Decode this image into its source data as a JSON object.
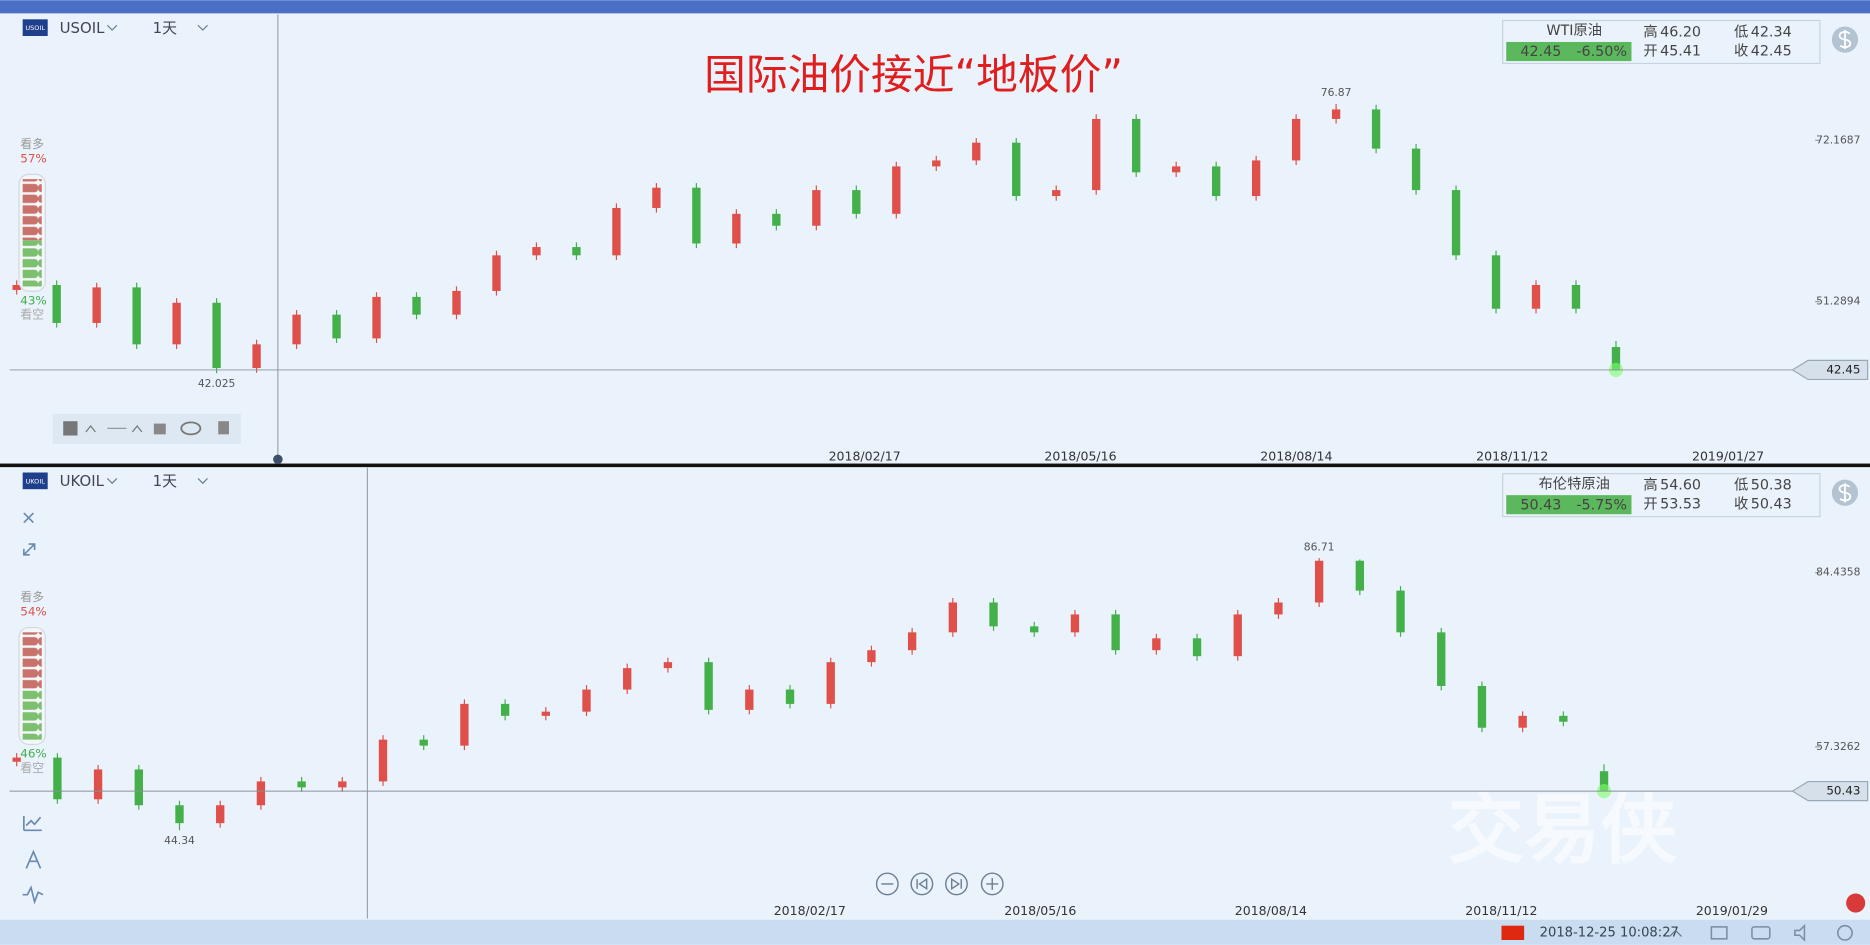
{
  "chart_data": [
    {
      "type": "candlestick",
      "symbol": "USOIL",
      "interval": "1天",
      "annotation": "国际油价接近“地板价”",
      "quote": {
        "name": "WTI原油",
        "last": "42.45",
        "change": "-6.50%",
        "fields": [
          {
            "label": "高",
            "value": "46.20"
          },
          {
            "label": "低",
            "value": "42.34"
          },
          {
            "label": "开",
            "value": "45.41"
          },
          {
            "label": "收",
            "value": "42.45"
          }
        ]
      },
      "sentiment": {
        "bull": {
          "label": "看多",
          "value": 57,
          "value_label": "57%"
        },
        "bear": {
          "label": "看空",
          "value": 43,
          "value_label": "43%"
        }
      },
      "xtick_labels": [
        "2018/02/17",
        "2018/05/16",
        "2018/08/14",
        "2018/11/12",
        "2019/01/27"
      ],
      "ylim": [
        30.41,
        88.44
      ],
      "yticks": [
        51.2894,
        72.1687
      ],
      "up_color": "#e0504a",
      "down_color": "#43b04a",
      "open": [
        52.8,
        53.44,
        48.53,
        53.13,
        45.76,
        51.14,
        42.69,
        45.76,
        49.6,
        46.53,
        51.9,
        49.6,
        52.67,
        57.28,
        58.35,
        57.28,
        63.41,
        66.03,
        58.81,
        62.65,
        61.11,
        65.72,
        62.65,
        68.79,
        69.56,
        71.86,
        64.95,
        65.72,
        74.93,
        68.02,
        68.79,
        64.95,
        69.56,
        74.93,
        76.16,
        71.09,
        65.72,
        57.28,
        50.37,
        53.44,
        45.41
      ],
      "high": [
        54.04,
        54.04,
        53.73,
        53.73,
        51.74,
        51.74,
        46.36,
        50.2,
        50.2,
        52.5,
        52.5,
        53.27,
        57.88,
        58.95,
        58.95,
        64.01,
        66.63,
        66.63,
        63.25,
        63.25,
        66.32,
        66.32,
        69.39,
        70.16,
        72.46,
        72.46,
        66.32,
        75.53,
        75.53,
        69.39,
        69.39,
        70.16,
        75.53,
        76.87,
        76.76,
        71.69,
        66.32,
        57.88,
        54.04,
        54.04,
        46.2
      ],
      "low": [
        52.2,
        47.93,
        47.93,
        45.16,
        45.16,
        42.025,
        42.09,
        45.16,
        45.93,
        45.93,
        49.0,
        49.0,
        52.07,
        56.68,
        56.68,
        56.68,
        62.81,
        58.21,
        58.21,
        60.51,
        60.51,
        62.05,
        62.05,
        68.19,
        68.96,
        64.35,
        64.35,
        65.12,
        67.42,
        67.42,
        64.35,
        64.35,
        68.96,
        74.33,
        70.49,
        65.12,
        56.68,
        49.77,
        49.77,
        49.77,
        42.34
      ],
      "close": [
        53.44,
        48.53,
        53.13,
        45.76,
        51.14,
        42.69,
        45.76,
        49.6,
        46.53,
        51.9,
        49.6,
        52.67,
        57.28,
        58.35,
        57.28,
        63.41,
        66.03,
        58.81,
        62.65,
        61.11,
        65.72,
        62.65,
        68.79,
        69.56,
        71.86,
        64.95,
        65.72,
        74.93,
        68.02,
        68.79,
        64.95,
        69.56,
        74.93,
        76.16,
        71.09,
        65.72,
        57.28,
        50.37,
        53.44,
        50.37,
        42.45
      ]
    },
    {
      "type": "candlestick",
      "symbol": "UKOIL",
      "interval": "1天",
      "quote": {
        "name": "布伦特原油",
        "last": "50.43",
        "change": "-5.75%",
        "fields": [
          {
            "label": "高",
            "value": "54.60"
          },
          {
            "label": "低",
            "value": "50.38"
          },
          {
            "label": "开",
            "value": "53.53"
          },
          {
            "label": "收",
            "value": "50.43"
          }
        ]
      },
      "sentiment": {
        "bull": {
          "label": "看多",
          "value": 54,
          "value_label": "54%"
        },
        "bear": {
          "label": "看空",
          "value": 46,
          "value_label": "46%"
        }
      },
      "xtick_labels": [
        "2018/02/17",
        "2018/05/16",
        "2018/08/14",
        "2018/11/12",
        "2019/01/29"
      ],
      "ylim": [
        30.59,
        100.78
      ],
      "yticks": [
        57.3262,
        84.4358
      ],
      "up_color": "#e0504a",
      "down_color": "#43b04a",
      "open": [
        55.0,
        55.65,
        49.16,
        53.8,
        48.23,
        45.44,
        48.23,
        51.94,
        51.01,
        51.94,
        58.44,
        57.51,
        64.01,
        62.15,
        62.8,
        66.24,
        69.58,
        70.51,
        63.08,
        66.24,
        64.01,
        70.51,
        72.37,
        75.15,
        79.8,
        76.08,
        75.15,
        77.94,
        72.37,
        74.22,
        71.44,
        77.94,
        79.8,
        86.3,
        81.65,
        75.15,
        66.8,
        60.3,
        62.15,
        53.53
      ],
      "high": [
        56.35,
        56.35,
        54.5,
        54.5,
        48.93,
        48.93,
        52.64,
        52.64,
        52.64,
        59.14,
        59.14,
        64.71,
        64.71,
        63.5,
        66.94,
        70.28,
        71.21,
        71.21,
        66.94,
        66.94,
        71.21,
        73.07,
        75.85,
        80.5,
        80.5,
        76.78,
        78.64,
        78.64,
        74.92,
        74.92,
        78.64,
        80.5,
        86.71,
        86.5,
        82.35,
        75.85,
        67.5,
        62.85,
        62.85,
        54.6
      ],
      "low": [
        54.3,
        48.46,
        48.46,
        47.53,
        44.34,
        44.74,
        47.53,
        50.31,
        50.31,
        51.24,
        56.81,
        56.81,
        61.45,
        61.45,
        62.1,
        65.54,
        68.88,
        62.38,
        62.38,
        63.31,
        63.31,
        69.81,
        71.67,
        74.45,
        75.38,
        74.45,
        74.45,
        71.67,
        71.67,
        70.74,
        70.74,
        77.24,
        79.1,
        80.95,
        74.45,
        66.1,
        59.6,
        59.6,
        60.53,
        50.38
      ],
      "close": [
        55.65,
        49.16,
        53.8,
        48.23,
        45.44,
        48.23,
        51.94,
        51.01,
        51.94,
        58.44,
        57.51,
        64.01,
        62.15,
        62.8,
        66.24,
        69.58,
        70.51,
        63.08,
        66.24,
        64.01,
        70.51,
        72.37,
        75.15,
        79.8,
        76.08,
        75.15,
        77.94,
        72.37,
        74.22,
        71.44,
        77.94,
        79.8,
        86.3,
        81.65,
        75.15,
        66.8,
        60.3,
        62.15,
        61.23,
        50.43
      ]
    }
  ],
  "watermark": "交易侠",
  "status": {
    "time": "2018-12-25 10:08:27"
  }
}
